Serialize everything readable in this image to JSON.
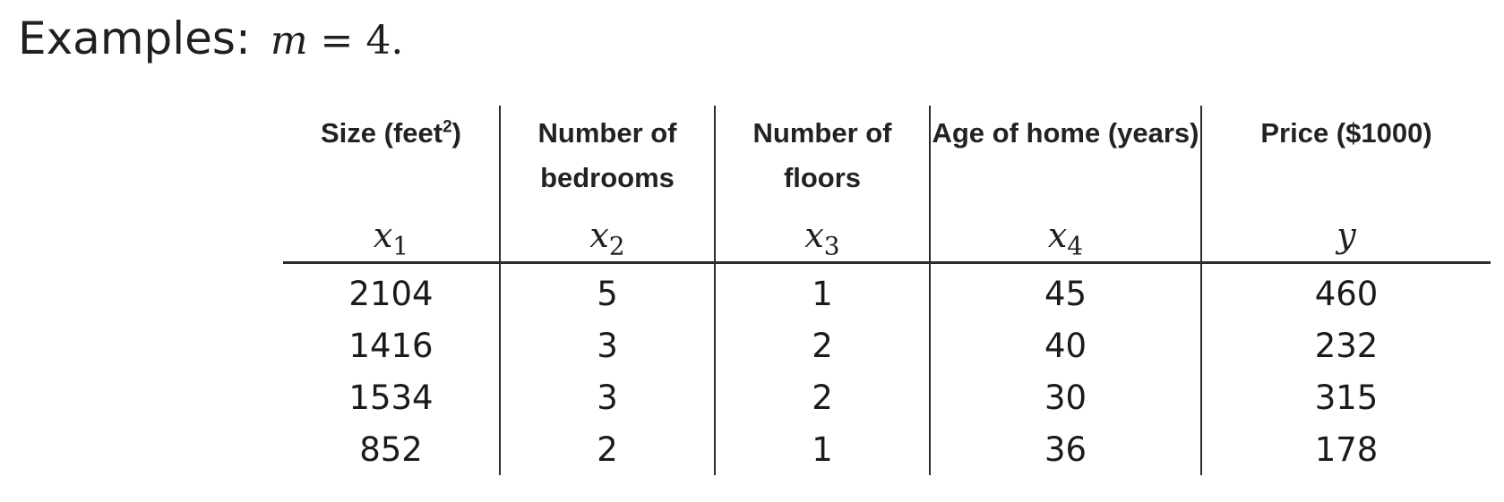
{
  "heading": {
    "label": "Examples:",
    "math_var": "m",
    "math_rest": " = 4."
  },
  "table": {
    "columns": [
      {
        "label": "Size (feet",
        "sup": "2",
        "close": ")",
        "var": "x",
        "sub": "1"
      },
      {
        "label": "Number of bedrooms",
        "var": "x",
        "sub": "2"
      },
      {
        "label": "Number of floors",
        "var": "x",
        "sub": "3"
      },
      {
        "label": "Age of home (years)",
        "var": "x",
        "sub": "4"
      },
      {
        "label": "Price ($1000)",
        "var": "y",
        "sub": ""
      }
    ],
    "rows": [
      [
        "2104",
        "5",
        "1",
        "45",
        "460"
      ],
      [
        "1416",
        "3",
        "2",
        "40",
        "232"
      ],
      [
        "1534",
        "3",
        "2",
        "30",
        "315"
      ],
      [
        "852",
        "2",
        "1",
        "36",
        "178"
      ]
    ]
  }
}
